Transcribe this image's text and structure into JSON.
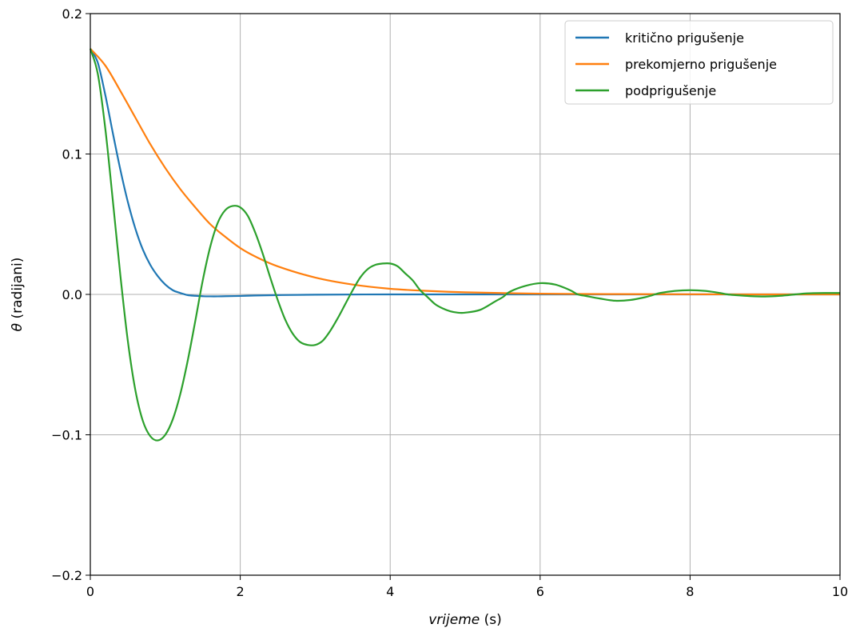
{
  "chart_data": {
    "type": "line",
    "title": "",
    "xlabel_italic": "vrijeme",
    "xlabel_unit": " (s)",
    "ylabel_symbol": "θ",
    "ylabel_unit": " (radijani)",
    "xlim": [
      0,
      10
    ],
    "ylim": [
      -0.2,
      0.2
    ],
    "xticks": [
      0,
      2,
      4,
      6,
      8,
      10
    ],
    "yticks": [
      -0.2,
      -0.1,
      0.0,
      0.1,
      0.2
    ],
    "xtick_labels": [
      "0",
      "2",
      "4",
      "6",
      "8",
      "10"
    ],
    "ytick_labels": [
      "−0.2",
      "−0.1",
      "0.0",
      "0.1",
      "0.2"
    ],
    "grid": true,
    "legend_position": "top-right",
    "series": [
      {
        "name": "kritično prigušenje",
        "color": "#1f77b4",
        "x": [
          0,
          0.1,
          0.2,
          0.3,
          0.4,
          0.5,
          0.6,
          0.7,
          0.8,
          0.9,
          1.0,
          1.1,
          1.2,
          1.3,
          1.4,
          1.5,
          1.6,
          1.7,
          1.8,
          2.0,
          2.2,
          2.5,
          3.0,
          4.0,
          5.0,
          6.0,
          7.0,
          8.0,
          9.0,
          10.0
        ],
        "y": [
          0.175,
          0.165,
          0.142,
          0.115,
          0.089,
          0.066,
          0.047,
          0.032,
          0.021,
          0.013,
          0.007,
          0.003,
          0.001,
          -0.0005,
          -0.001,
          -0.0013,
          -0.0014,
          -0.0014,
          -0.0013,
          -0.0011,
          -0.0008,
          -0.0005,
          -0.0002,
          0.0,
          0.0,
          0.0,
          0.0,
          0.0,
          0.0,
          0.0
        ]
      },
      {
        "name": "prekomjerno prigušenje",
        "color": "#ff7f0e",
        "x": [
          0,
          0.2,
          0.4,
          0.6,
          0.8,
          1.0,
          1.2,
          1.4,
          1.6,
          1.8,
          2.0,
          2.2,
          2.5,
          3.0,
          3.5,
          4.0,
          4.5,
          5.0,
          6.0,
          7.0,
          8.0,
          9.0,
          10.0
        ],
        "y": [
          0.175,
          0.163,
          0.145,
          0.126,
          0.107,
          0.09,
          0.075,
          0.062,
          0.05,
          0.041,
          0.033,
          0.027,
          0.02,
          0.012,
          0.007,
          0.004,
          0.0025,
          0.0015,
          0.0005,
          0.0002,
          0.0001,
          0.0,
          0.0
        ]
      },
      {
        "name": "podprigušenje",
        "color": "#2ca02c",
        "x": [
          0,
          0.1,
          0.2,
          0.3,
          0.4,
          0.5,
          0.6,
          0.7,
          0.8,
          0.9,
          1.0,
          1.1,
          1.2,
          1.3,
          1.4,
          1.5,
          1.6,
          1.7,
          1.8,
          1.9,
          2.0,
          2.1,
          2.2,
          2.3,
          2.4,
          2.5,
          2.6,
          2.7,
          2.8,
          2.9,
          3.0,
          3.1,
          3.2,
          3.3,
          3.4,
          3.5,
          3.6,
          3.7,
          3.8,
          3.9,
          4.0,
          4.1,
          4.2,
          4.3,
          4.4,
          4.5,
          4.6,
          4.7,
          4.8,
          4.9,
          5.0,
          5.2,
          5.4,
          5.5,
          5.6,
          5.8,
          6.0,
          6.2,
          6.4,
          6.5,
          6.6,
          6.8,
          7.0,
          7.2,
          7.4,
          7.5,
          7.6,
          7.8,
          8.0,
          8.2,
          8.4,
          8.5,
          8.6,
          8.8,
          9.0,
          9.2,
          9.4,
          9.5,
          9.6,
          9.8,
          10.0
        ],
        "y": [
          0.175,
          0.157,
          0.118,
          0.067,
          0.014,
          -0.033,
          -0.068,
          -0.09,
          -0.101,
          -0.104,
          -0.1,
          -0.089,
          -0.071,
          -0.047,
          -0.019,
          0.01,
          0.034,
          0.051,
          0.06,
          0.063,
          0.062,
          0.056,
          0.044,
          0.029,
          0.012,
          -0.004,
          -0.018,
          -0.028,
          -0.034,
          -0.036,
          -0.036,
          -0.033,
          -0.026,
          -0.017,
          -0.007,
          0.003,
          0.012,
          0.018,
          0.021,
          0.022,
          0.022,
          0.02,
          0.015,
          0.01,
          0.003,
          -0.002,
          -0.007,
          -0.01,
          -0.012,
          -0.013,
          -0.013,
          -0.011,
          -0.005,
          -0.002,
          0.002,
          0.006,
          0.008,
          0.007,
          0.003,
          0.0,
          -0.001,
          -0.003,
          -0.0045,
          -0.004,
          -0.002,
          -0.0005,
          0.001,
          0.0025,
          0.003,
          0.0025,
          0.001,
          0.0,
          -0.0005,
          -0.0012,
          -0.0015,
          -0.001,
          0.0,
          0.0005,
          0.0008,
          0.001,
          0.001
        ]
      }
    ]
  }
}
